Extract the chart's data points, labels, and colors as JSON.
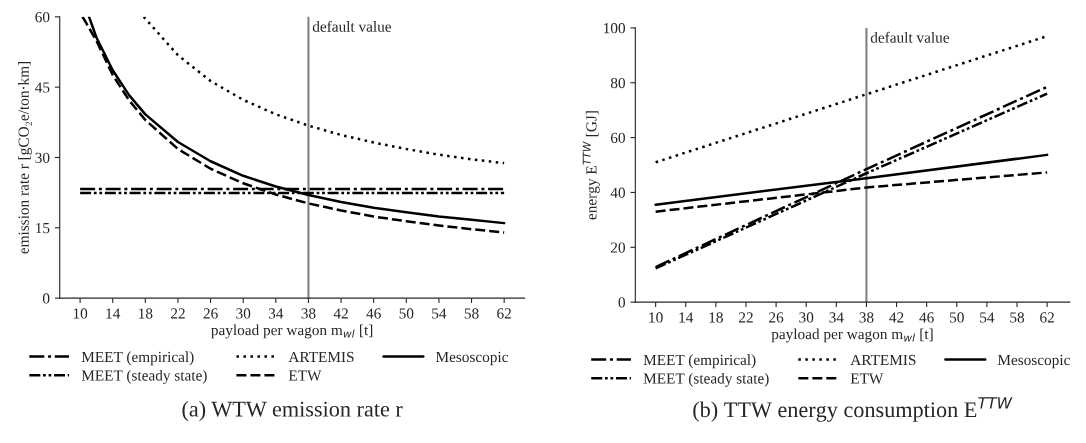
{
  "chart_data": [
    {
      "type": "line",
      "title": "(a) WTW emission rate r",
      "xlabel": "payload per wagon m$_{wl}$ [t]",
      "ylabel": "emission rate r [gCO₂e/ton·km]",
      "xlim": [
        7.5,
        64.5
      ],
      "ylim": [
        0,
        60
      ],
      "xticks": [
        10,
        14,
        18,
        22,
        26,
        30,
        34,
        38,
        42,
        46,
        50,
        54,
        58,
        62
      ],
      "yticks": [
        0,
        15,
        30,
        45,
        60
      ],
      "grid": false,
      "legend": "bottom",
      "ref_lines": [
        {
          "axis": "x",
          "value": 38,
          "label": "default value",
          "color": "#808080"
        }
      ],
      "series": [
        {
          "name": "MEET (empirical)",
          "color": "#000000",
          "line_style": "dashdot",
          "x": [
            10,
            62
          ],
          "values": [
            23.3,
            23.3
          ]
        },
        {
          "name": "MEET (steady state)",
          "color": "#000000",
          "line_style": "dashdotdot",
          "x": [
            10,
            62
          ],
          "values": [
            22.4,
            22.4
          ]
        },
        {
          "name": "ARTEMIS",
          "color": "#000000",
          "line_style": "dotted",
          "x": [
            17.8,
            22,
            26,
            30,
            34,
            38,
            42,
            46,
            50,
            54,
            58,
            62
          ],
          "values": [
            60,
            51.8,
            46.3,
            42.3,
            39.2,
            36.8,
            34.8,
            33.2,
            31.8,
            30.6,
            29.6,
            28.8
          ]
        },
        {
          "name": "ETW",
          "color": "#000000",
          "line_style": "dashed",
          "x": [
            10.3,
            12,
            14,
            16,
            18,
            22,
            26,
            30,
            34,
            38,
            42,
            46,
            50,
            54,
            58,
            62
          ],
          "values": [
            60,
            54.9,
            47.6,
            42.2,
            38.0,
            31.8,
            27.6,
            24.5,
            22.1,
            20.2,
            18.7,
            17.4,
            16.4,
            15.5,
            14.7,
            14.0
          ]
        },
        {
          "name": "Mesoscopic",
          "color": "#000000",
          "line_style": "solid",
          "x": [
            11.1,
            12,
            14,
            16,
            18,
            22,
            26,
            30,
            34,
            38,
            42,
            46,
            50,
            54,
            58,
            62
          ],
          "values": [
            60,
            55.6,
            48.6,
            43.3,
            39.2,
            33.3,
            29.2,
            26.1,
            23.8,
            22.0,
            20.5,
            19.3,
            18.3,
            17.4,
            16.7,
            16.0
          ]
        }
      ]
    },
    {
      "type": "line",
      "title": "(b) TTW energy consumption E$^{TTW}$",
      "xlabel": "payload per wagon m$_{wl}$ [t]",
      "ylabel": "energy E$^{TTW}$ [GJ]",
      "xlim": [
        7.3,
        65
      ],
      "ylim": [
        0,
        100
      ],
      "xticks": [
        10,
        14,
        18,
        22,
        26,
        30,
        34,
        38,
        42,
        46,
        50,
        54,
        58,
        62
      ],
      "yticks": [
        0,
        20,
        40,
        60,
        80,
        100
      ],
      "grid": false,
      "legend": "bottom",
      "ref_lines": [
        {
          "axis": "x",
          "value": 38,
          "label": "default value",
          "color": "#808080"
        }
      ],
      "series": [
        {
          "name": "MEET (empirical)",
          "color": "#000000",
          "line_style": "dashdot",
          "x": [
            10,
            38,
            62
          ],
          "values": [
            12.8,
            48.5,
            78.5
          ]
        },
        {
          "name": "MEET (steady state)",
          "color": "#000000",
          "line_style": "dashdotdot",
          "x": [
            10,
            38,
            62
          ],
          "values": [
            12.3,
            47,
            76
          ]
        },
        {
          "name": "ARTEMIS",
          "color": "#000000",
          "line_style": "dotted",
          "x": [
            10,
            38,
            62
          ],
          "values": [
            51,
            75.8,
            97
          ]
        },
        {
          "name": "ETW",
          "color": "#000000",
          "line_style": "dashed",
          "x": [
            10,
            38,
            62
          ],
          "values": [
            33,
            41.8,
            47.3
          ]
        },
        {
          "name": "Mesoscopic",
          "color": "#000000",
          "line_style": "solid",
          "x": [
            10,
            38,
            62
          ],
          "values": [
            35.5,
            45.2,
            53.7
          ]
        }
      ]
    }
  ]
}
